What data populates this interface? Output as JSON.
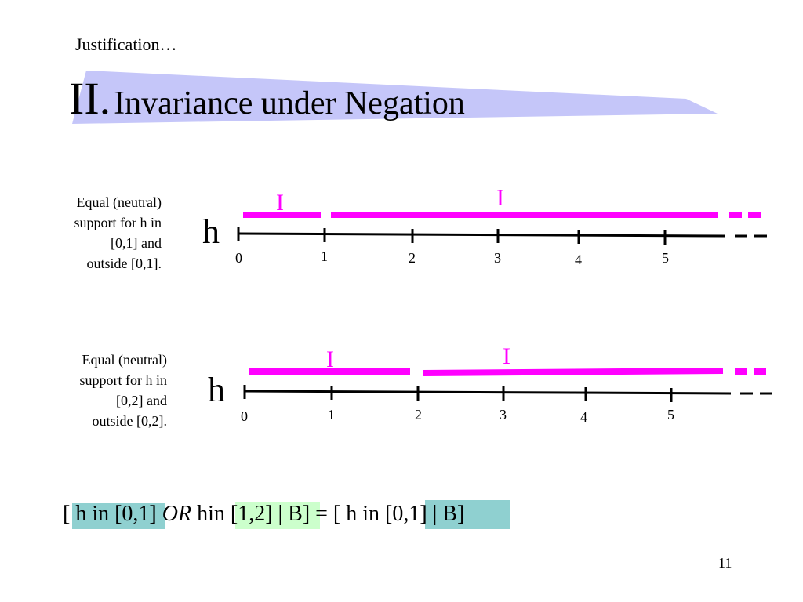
{
  "kicker": "Justification…",
  "title": {
    "numeral": "II.",
    "text": "Invariance under Negation"
  },
  "colors": {
    "banner": "#c5c6f9",
    "interval": "#ff00ff",
    "axis": "#000000",
    "hl_blue": "#8fd0d0",
    "hl_green": "#ccffcc"
  },
  "panels": [
    {
      "caption": [
        "Equal (neutral)",
        "support for h in",
        "[0,1] and",
        "outside [0,1]."
      ],
      "axis_label": "h",
      "ticks": [
        "0",
        "1",
        "2",
        "3",
        "4",
        "5"
      ],
      "interval_labels": [
        "I",
        "I"
      ]
    },
    {
      "caption": [
        "Equal (neutral)",
        "support for h in",
        "[0,2] and",
        "outside [0,2]."
      ],
      "axis_label": "h",
      "ticks": [
        "0",
        "1",
        "2",
        "3",
        "4",
        "5"
      ],
      "interval_labels": [
        "I",
        "I"
      ]
    }
  ],
  "formula": {
    "open": "[",
    "part1": "h in [0,1]",
    "or": "OR",
    "h": "h",
    "part2": "in [1,2]",
    "given1": "| B]",
    "equals": "= [",
    "part3": "h in [0,1]",
    "given2": "| B]"
  },
  "page_number": "11"
}
